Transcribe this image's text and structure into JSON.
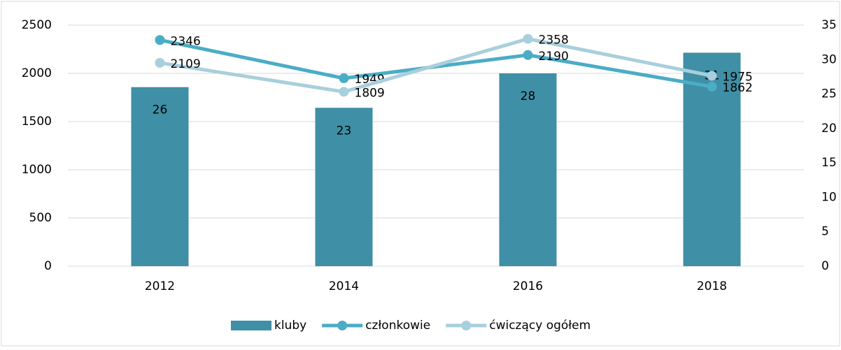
{
  "chart_data": {
    "type": "combo",
    "categories": [
      "2012",
      "2014",
      "2016",
      "2018"
    ],
    "series": [
      {
        "name": "kluby",
        "type": "bar",
        "axis": "y2",
        "color": "#3f8fa6",
        "values": [
          26,
          23,
          28,
          31
        ]
      },
      {
        "name": "członkowie",
        "type": "line",
        "color": "#4bacc6",
        "values": [
          2346,
          1949,
          2190,
          1862
        ]
      },
      {
        "name": "ćwiczący ogółem",
        "type": "line",
        "color": "#a8cfdc",
        "values": [
          2109,
          1809,
          2358,
          1975
        ]
      }
    ],
    "ylim": [
      0,
      2500
    ],
    "yticks": [
      0,
      500,
      1000,
      1500,
      2000,
      2500
    ],
    "y2lim": [
      0,
      35
    ],
    "y2ticks": [
      0,
      5,
      10,
      15,
      20,
      25,
      30,
      35
    ],
    "grid": true,
    "legend": "bottom"
  }
}
